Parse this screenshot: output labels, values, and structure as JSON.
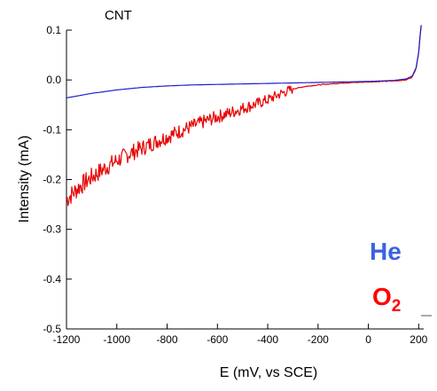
{
  "chart_data": {
    "type": "line",
    "title": "CNT",
    "xlabel": "E (mV, vs SCE)",
    "ylabel": "Intensity  (mA)",
    "xlim": [
      -1200,
      220
    ],
    "ylim": [
      -0.5,
      0.1
    ],
    "x_ticks": [
      -1200,
      -1000,
      -800,
      -600,
      -400,
      -200,
      0,
      200
    ],
    "y_ticks": [
      0.1,
      0.0,
      -0.1,
      -0.2,
      -0.3,
      -0.4,
      -0.5
    ],
    "x_tick_labels": [
      "-1200",
      "-1000",
      "-800",
      "-600",
      "-400",
      "-200",
      "0",
      "200"
    ],
    "y_tick_labels": [
      "0.1",
      "0.0",
      "-0.1",
      "-0.2",
      "-0.3",
      "-0.4",
      "-0.5"
    ],
    "grid": false,
    "legend_position": "bottom-right",
    "series": [
      {
        "name": "He",
        "color": "#3b63e0",
        "line_color": "#1f1fcc",
        "x": [
          -1200,
          -1100,
          -1000,
          -900,
          -800,
          -700,
          -600,
          -500,
          -400,
          -300,
          -200,
          -100,
          0,
          100,
          150,
          175,
          190,
          200,
          205,
          210
        ],
        "y": [
          -0.036,
          -0.027,
          -0.02,
          -0.015,
          -0.012,
          -0.01,
          -0.009,
          -0.008,
          -0.007,
          -0.006,
          -0.005,
          -0.004,
          -0.003,
          -0.001,
          0.002,
          0.008,
          0.025,
          0.055,
          0.085,
          0.11
        ]
      },
      {
        "name": "O",
        "subscript": "2",
        "color": "#ff0000",
        "line_color": "#e60000",
        "x": [
          -1200,
          -1150,
          -1100,
          -1050,
          -1000,
          -950,
          -900,
          -850,
          -800,
          -750,
          -700,
          -650,
          -600,
          -550,
          -500,
          -450,
          -400,
          -350,
          -300,
          -250,
          -200,
          -150,
          -100,
          -50,
          0,
          50,
          100,
          150,
          175,
          190,
          200,
          205,
          210
        ],
        "y": [
          -0.24,
          -0.215,
          -0.195,
          -0.178,
          -0.162,
          -0.148,
          -0.137,
          -0.125,
          -0.114,
          -0.103,
          -0.093,
          -0.083,
          -0.074,
          -0.066,
          -0.057,
          -0.049,
          -0.04,
          -0.028,
          -0.018,
          -0.013,
          -0.01,
          -0.008,
          -0.006,
          -0.005,
          -0.004,
          -0.003,
          -0.002,
          0.0,
          0.006,
          0.024,
          0.055,
          0.085,
          0.11
        ]
      }
    ]
  }
}
